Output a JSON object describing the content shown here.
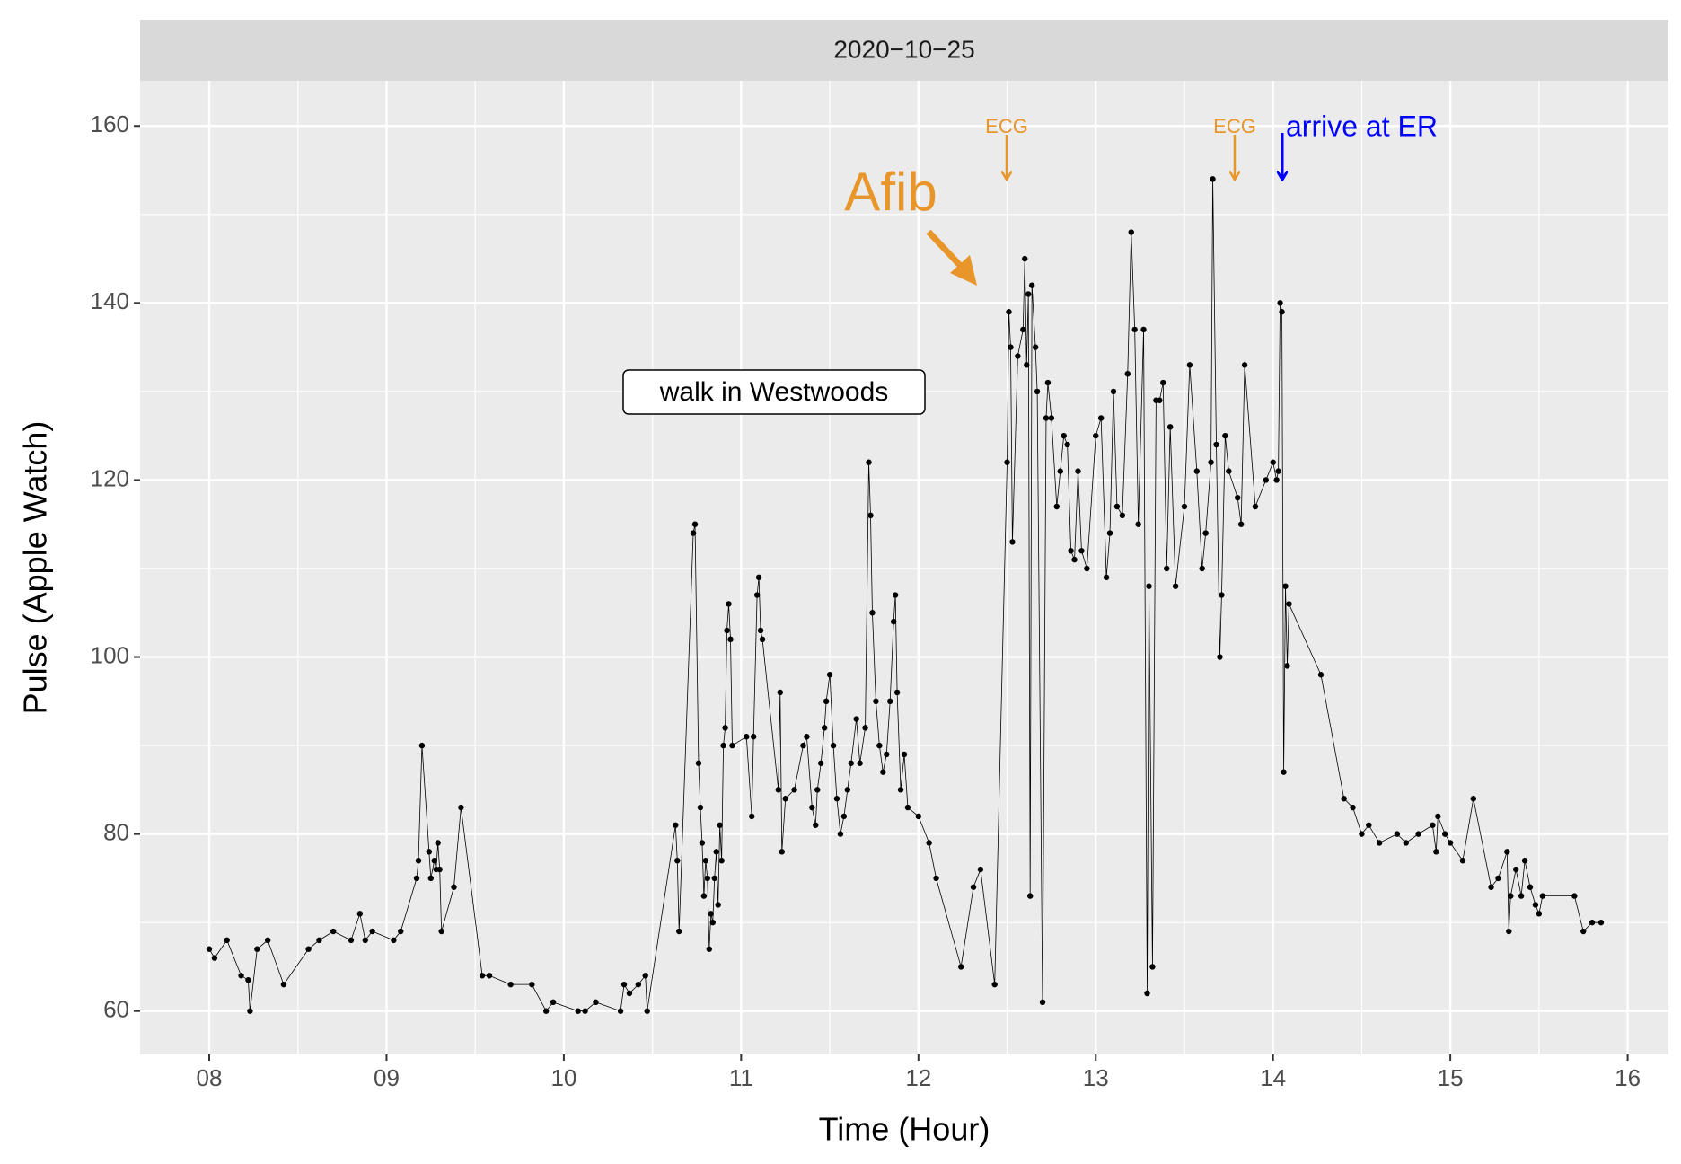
{
  "chart_data": {
    "type": "line",
    "strip_label": "2020−10−25",
    "x_label": "Time (Hour)",
    "y_label": "Pulse (Apple Watch)",
    "xlim": [
      7.61,
      16.23
    ],
    "ylim": [
      55.1,
      165.1
    ],
    "xticks": [
      {
        "value": 8,
        "label": "08"
      },
      {
        "value": 9,
        "label": "09"
      },
      10,
      11,
      12,
      13,
      14,
      15,
      16
    ],
    "yticks": [
      60,
      80,
      100,
      120,
      140,
      160
    ],
    "grid": true,
    "color": "#000000",
    "annotations": [
      "Afib",
      "ECG",
      "ECG",
      "arrive at ER",
      "walk in Westwoods"
    ],
    "x": [
      8.0,
      8.03,
      8.1,
      8.18,
      8.22,
      8.23,
      8.27,
      8.33,
      8.42,
      8.56,
      8.62,
      8.7,
      8.8,
      8.85,
      8.88,
      8.92,
      9.04,
      9.08,
      9.17,
      9.18,
      9.2,
      9.24,
      9.25,
      9.27,
      9.28,
      9.29,
      9.3,
      9.31,
      9.38,
      9.42,
      9.54,
      9.58,
      9.7,
      9.82,
      9.9,
      9.94,
      10.08,
      10.12,
      10.18,
      10.32,
      10.34,
      10.37,
      10.42,
      10.46,
      10.47,
      10.63,
      10.64,
      10.65,
      10.73,
      10.74,
      10.76,
      10.77,
      10.78,
      10.79,
      10.8,
      10.81,
      10.82,
      10.83,
      10.84,
      10.85,
      10.86,
      10.87,
      10.88,
      10.89,
      10.9,
      10.91,
      10.92,
      10.93,
      10.94,
      10.95,
      11.03,
      11.06,
      11.07,
      11.09,
      11.1,
      11.11,
      11.12,
      11.21,
      11.22,
      11.23,
      11.25,
      11.3,
      11.35,
      11.37,
      11.4,
      11.42,
      11.43,
      11.45,
      11.47,
      11.48,
      11.5,
      11.52,
      11.54,
      11.56,
      11.58,
      11.6,
      11.62,
      11.65,
      11.67,
      11.7,
      11.72,
      11.73,
      11.74,
      11.76,
      11.78,
      11.8,
      11.82,
      11.84,
      11.86,
      11.87,
      11.88,
      11.9,
      11.92,
      11.94,
      12.0,
      12.06,
      12.1,
      12.24,
      12.31,
      12.35,
      12.43,
      12.5,
      12.51,
      12.52,
      12.53,
      12.56,
      12.59,
      12.6,
      12.61,
      12.62,
      12.63,
      12.64,
      12.66,
      12.67,
      12.7,
      12.72,
      12.73,
      12.75,
      12.78,
      12.8,
      12.82,
      12.84,
      12.86,
      12.88,
      12.9,
      12.92,
      12.95,
      13.0,
      13.03,
      13.06,
      13.08,
      13.1,
      13.12,
      13.15,
      13.18,
      13.2,
      13.22,
      13.24,
      13.27,
      13.29,
      13.3,
      13.32,
      13.34,
      13.36,
      13.38,
      13.4,
      13.42,
      13.45,
      13.5,
      13.53,
      13.57,
      13.6,
      13.62,
      13.65,
      13.66,
      13.68,
      13.7,
      13.71,
      13.73,
      13.75,
      13.8,
      13.82,
      13.84,
      13.9,
      13.96,
      14.0,
      14.02,
      14.03,
      14.04,
      14.05,
      14.06,
      14.07,
      14.08,
      14.09,
      14.27,
      14.4,
      14.45,
      14.5,
      14.54,
      14.6,
      14.7,
      14.75,
      14.82,
      14.9,
      14.92,
      14.93,
      14.97,
      15.0,
      15.07,
      15.13,
      15.23,
      15.27,
      15.32,
      15.33,
      15.34,
      15.37,
      15.4,
      15.42,
      15.45,
      15.48,
      15.5,
      15.52,
      15.7,
      15.75,
      15.8,
      15.85
    ],
    "values": [
      67,
      66,
      68,
      64,
      63.5,
      60,
      67,
      68,
      63,
      67,
      68,
      69,
      68,
      71,
      68,
      69,
      68,
      69,
      75,
      77,
      90,
      78,
      75,
      77,
      76,
      79,
      76,
      69,
      74,
      83,
      64,
      64,
      63,
      63,
      60,
      61,
      60,
      60,
      61,
      60,
      63,
      62,
      63,
      64,
      60,
      81,
      77,
      69,
      114,
      115,
      88,
      83,
      79,
      73,
      77,
      75,
      67,
      71,
      70,
      75,
      78,
      72,
      81,
      77,
      90,
      92,
      103,
      106,
      102,
      90,
      91,
      82,
      91,
      107,
      109,
      103,
      102,
      85,
      96,
      78,
      84,
      85,
      90,
      91,
      83,
      81,
      85,
      88,
      92,
      95,
      98,
      90,
      84,
      80,
      82,
      85,
      88,
      93,
      88,
      92,
      122,
      116,
      105,
      95,
      90,
      87,
      89,
      95,
      104,
      107,
      96,
      85,
      89,
      83,
      82,
      79,
      75,
      65,
      74,
      76,
      63,
      122,
      139,
      135,
      113,
      134,
      137,
      145,
      133,
      141,
      73,
      142,
      135,
      130,
      61,
      127,
      131,
      127,
      117,
      121,
      125,
      124,
      112,
      111,
      121,
      112,
      110,
      125,
      127,
      109,
      114,
      130,
      117,
      116,
      132,
      148,
      137,
      115,
      137,
      62,
      108,
      65,
      129,
      129,
      131,
      110,
      126,
      108,
      117,
      133,
      121,
      110,
      114,
      122,
      154,
      124,
      100,
      107,
      125,
      121,
      118,
      115,
      133,
      117,
      120,
      122,
      120,
      121,
      140,
      139,
      87,
      108,
      99,
      106,
      98,
      84,
      83,
      80,
      81,
      79,
      80,
      79,
      80,
      81,
      78,
      82,
      80,
      79,
      77,
      84,
      74,
      75,
      78,
      69,
      73,
      76,
      73,
      77,
      74,
      72,
      71,
      73,
      73,
      69,
      70,
      70
    ]
  }
}
